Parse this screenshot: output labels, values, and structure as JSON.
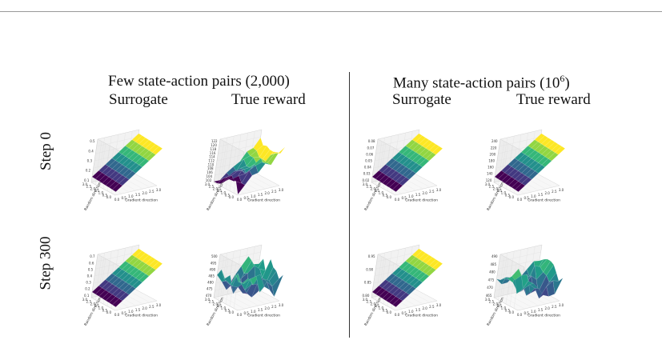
{
  "header": {
    "left_group_title": "Few state-action pairs (2,000)",
    "right_group_title_main": "Many state-action pairs (10",
    "right_group_title_exp": "6",
    "right_group_title_close": ")"
  },
  "columns": {
    "left_surrogate": "Surrogate",
    "left_true_reward": "True reward",
    "right_surrogate": "Surrogate",
    "right_true_reward": "True reward"
  },
  "rows": {
    "step0": "Step 0",
    "step300": "Step 300"
  },
  "panel_axis_labels": {
    "x_label": "Gradient direction",
    "y_label": "Random direction",
    "x_ticks": [
      "0.0",
      "0.5",
      "1.0",
      "1.5",
      "2.0",
      "2.5",
      "3.0"
    ],
    "y_ticks": [
      "3.0",
      "2.5",
      "2.0",
      "1.5",
      "1.0",
      "0.5",
      "0.0"
    ]
  },
  "chart_data": [
    {
      "type": "heatmap",
      "panel": "few-surrogate-step0",
      "surface": "smooth plane",
      "z_ticks": [
        "0.1",
        "0.2",
        "0.3",
        "0.4",
        "0.5"
      ]
    },
    {
      "type": "heatmap",
      "panel": "few-true-step0",
      "surface": "noisy plane",
      "z_ticks": [
        "102",
        "104",
        "106",
        "108",
        "110",
        "112",
        "114",
        "116",
        "118",
        "120",
        "122"
      ]
    },
    {
      "type": "heatmap",
      "panel": "many-surrogate-step0",
      "surface": "smooth plane",
      "z_ticks": [
        "0.02",
        "0.03",
        "0.04",
        "0.05",
        "0.06",
        "0.07",
        "0.08"
      ]
    },
    {
      "type": "heatmap",
      "panel": "many-true-step0",
      "surface": "smooth plane",
      "z_ticks": [
        "120",
        "140",
        "160",
        "180",
        "200",
        "220",
        "240"
      ]
    },
    {
      "type": "heatmap",
      "panel": "few-surrogate-step300",
      "surface": "smooth plane",
      "z_ticks": [
        "0.1",
        "0.2",
        "0.3",
        "0.4",
        "0.5",
        "0.6",
        "0.7"
      ]
    },
    {
      "type": "heatmap",
      "panel": "few-true-step300",
      "surface": "jagged",
      "z_ticks": [
        "470",
        "475",
        "480",
        "485",
        "490",
        "495",
        "500"
      ]
    },
    {
      "type": "heatmap",
      "panel": "many-surrogate-step300",
      "surface": "smooth plane",
      "z_ticks": [
        "0.80",
        "0.85",
        "0.90",
        "0.95"
      ]
    },
    {
      "type": "heatmap",
      "panel": "many-true-step300",
      "surface": "jagged",
      "z_ticks": [
        "465",
        "470",
        "475",
        "480",
        "485",
        "490"
      ]
    }
  ]
}
